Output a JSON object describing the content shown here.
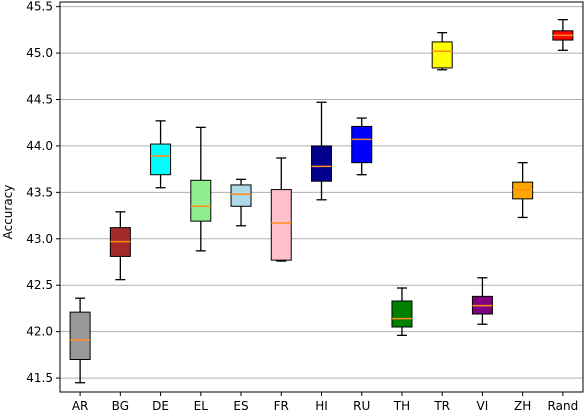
{
  "chart_data": {
    "type": "box",
    "title": "",
    "xlabel": "",
    "ylabel": "Accuracy",
    "ylim": [
      41.35,
      45.55
    ],
    "yticks": [
      41.5,
      42.0,
      42.5,
      43.0,
      43.5,
      44.0,
      44.5,
      45.0,
      45.5
    ],
    "ytick_labels": [
      "41.5",
      "42.0",
      "42.5",
      "43.0",
      "43.5",
      "44.0",
      "44.5",
      "45.0",
      "45.5"
    ],
    "grid": "horizontal",
    "legend": "none",
    "median_color": "#ff8c1a",
    "categories": [
      {
        "label": "AR",
        "color": "#999999",
        "whislo": 41.45,
        "q1": 41.7,
        "med": 41.91,
        "q3": 42.21,
        "whishi": 42.36
      },
      {
        "label": "BG",
        "color": "#a52a2a",
        "whislo": 42.56,
        "q1": 42.81,
        "med": 42.97,
        "q3": 43.12,
        "whishi": 43.29
      },
      {
        "label": "DE",
        "color": "#00ffff",
        "whislo": 43.55,
        "q1": 43.69,
        "med": 43.89,
        "q3": 44.02,
        "whishi": 44.27
      },
      {
        "label": "EL",
        "color": "#90ee90",
        "whislo": 42.87,
        "q1": 43.19,
        "med": 43.35,
        "q3": 43.63,
        "whishi": 44.2
      },
      {
        "label": "ES",
        "color": "#add8e6",
        "whislo": 43.14,
        "q1": 43.35,
        "med": 43.48,
        "q3": 43.58,
        "whishi": 43.64
      },
      {
        "label": "FR",
        "color": "#ffc0cb",
        "whislo": 42.76,
        "q1": 42.77,
        "med": 43.17,
        "q3": 43.53,
        "whishi": 43.87
      },
      {
        "label": "HI",
        "color": "#00008b",
        "whislo": 43.42,
        "q1": 43.62,
        "med": 43.78,
        "q3": 44.0,
        "whishi": 44.47
      },
      {
        "label": "RU",
        "color": "#0000ff",
        "whislo": 43.69,
        "q1": 43.82,
        "med": 44.07,
        "q3": 44.21,
        "whishi": 44.3
      },
      {
        "label": "TH",
        "color": "#008000",
        "whislo": 41.96,
        "q1": 42.05,
        "med": 42.14,
        "q3": 42.33,
        "whishi": 42.47
      },
      {
        "label": "TR",
        "color": "#ffff00",
        "whislo": 44.82,
        "q1": 44.84,
        "med": 45.02,
        "q3": 45.12,
        "whishi": 45.22
      },
      {
        "label": "VI",
        "color": "#800080",
        "whislo": 42.08,
        "q1": 42.19,
        "med": 42.28,
        "q3": 42.38,
        "whishi": 42.58
      },
      {
        "label": "ZH",
        "color": "#ffa500",
        "whislo": 43.23,
        "q1": 43.43,
        "med": 43.53,
        "q3": 43.61,
        "whishi": 43.82
      },
      {
        "label": "Rand",
        "color": "#ff0000",
        "whislo": 45.03,
        "q1": 45.14,
        "med": 45.19,
        "q3": 45.24,
        "whishi": 45.36
      }
    ]
  }
}
